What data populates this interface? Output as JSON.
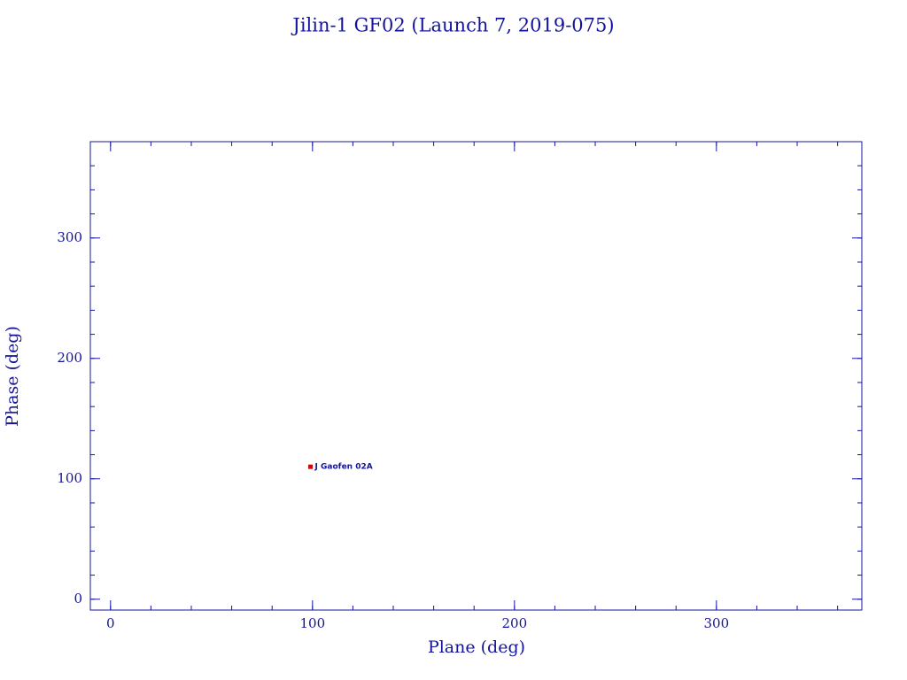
{
  "chart_data": {
    "type": "scatter",
    "title": "Jilin-1 GF02 (Launch 7, 2019-075)",
    "x_label": "Plane (deg)",
    "y_label": "Phase (deg)",
    "x": [
      99
    ],
    "series": [
      {
        "name": "J Gaofen 02A",
        "color": "#e00000",
        "values": [
          110
        ]
      }
    ],
    "xlim": [
      -10,
      372
    ],
    "xticks": [
      0,
      100,
      200,
      300
    ],
    "ylim": [
      -9,
      380
    ],
    "yticks": [
      0,
      100,
      200,
      300
    ],
    "grid": false,
    "axis_color": "#14149a"
  }
}
